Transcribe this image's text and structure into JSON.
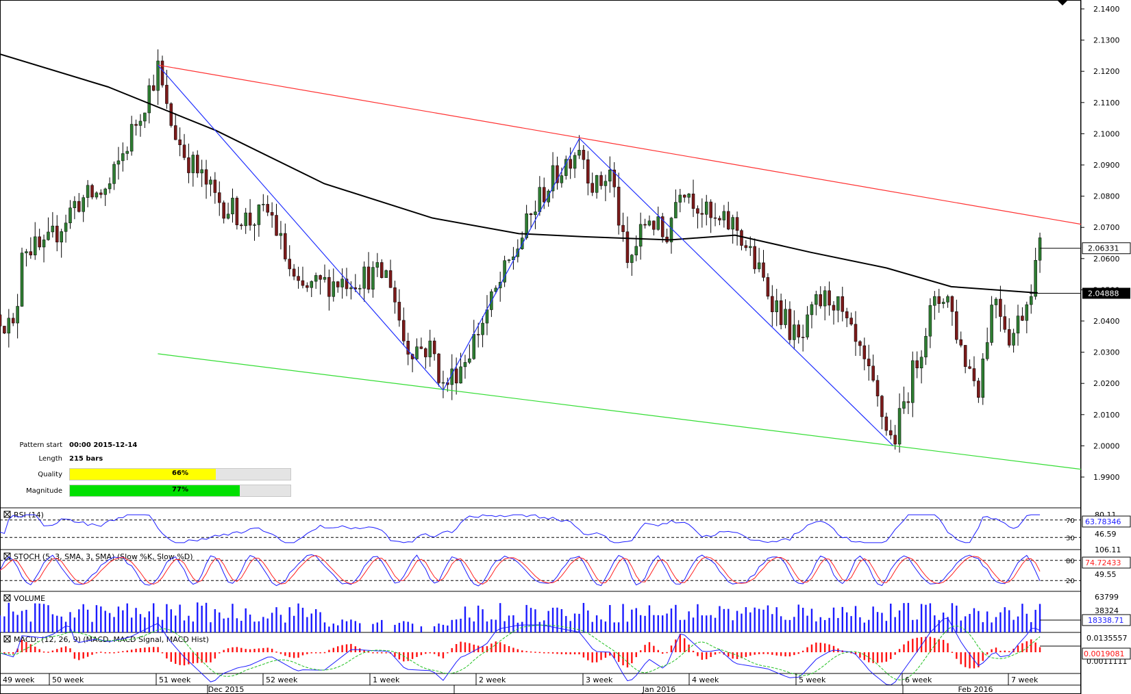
{
  "price_axis": {
    "ticks": [
      "2.1400",
      "2.1300",
      "2.1200",
      "2.1100",
      "2.1000",
      "2.0900",
      "2.0800",
      "2.0700",
      "2.0600",
      "2.0500",
      "2.0400",
      "2.0300",
      "2.0200",
      "2.0100",
      "2.0000",
      "1.9900"
    ],
    "last_price_label": "2.06331",
    "ma_label": "2.04888"
  },
  "time_axis": {
    "week_labels": [
      "49 week",
      "50 week",
      "51 week",
      "52 week",
      "1 week",
      "2 week",
      "3 week",
      "4 week",
      "5 week",
      "6 week",
      "7 week"
    ],
    "month_labels": [
      "Dec 2015",
      "Jan 2016",
      "Feb 2016"
    ]
  },
  "pattern_info": {
    "start_label": "Pattern start",
    "start_value": "00:00 2015-12-14",
    "length_label": "Length",
    "length_value": "215 bars",
    "quality_label": "Quality",
    "quality_text": "66%",
    "quality_value": 0.66,
    "magnitude_label": "Magnitude",
    "magnitude_text": "77%",
    "magnitude_value": 0.77
  },
  "indicators": {
    "rsi": {
      "title": "RSI (14)",
      "levels": [
        "70",
        "30"
      ],
      "scale": [
        "80.11",
        "46.59"
      ],
      "value": "63.78346"
    },
    "stoch": {
      "title": "STOCH (5, 3, SMA, 3, SMA) (Slow %K, Slow %D)",
      "levels": [
        "80",
        "20"
      ],
      "scale": [
        "106.11",
        "49.55"
      ],
      "value": "74.72433"
    },
    "volume": {
      "title": "VOLUME",
      "scale": [
        "63799",
        "38324"
      ],
      "value": "18338.71"
    },
    "macd": {
      "title": "MACD: (12, 26, 9) (MACD, MACD Signal, MACD Hist)",
      "scale": [
        "0.0135557",
        "0.0011111"
      ],
      "value": "0.0019081"
    }
  },
  "colors": {
    "bull": "#2e7d32",
    "bear": "#7b1a1a",
    "ma": "#000000",
    "resistance": "#ff3030",
    "support": "#33dd33",
    "zigzag": "#2030ff",
    "quality": "#ffff00",
    "magnitude": "#00e000"
  },
  "chart_data": {
    "type": "candlestick",
    "title": "",
    "ylim": [
      1.99,
      2.14
    ],
    "zigzag_points": [
      [
        0.146,
        2.122
      ],
      [
        0.41,
        2.0178
      ],
      [
        0.536,
        2.0985
      ],
      [
        0.826,
        2.0001
      ]
    ],
    "resistance_line": [
      [
        0.146,
        2.122
      ],
      [
        1.0,
        2.071
      ]
    ],
    "support_line": [
      [
        0.146,
        2.0295
      ],
      [
        1.0,
        1.9925
      ]
    ],
    "ma_points": [
      [
        0.0,
        2.1255
      ],
      [
        0.1,
        2.115
      ],
      [
        0.2,
        2.101
      ],
      [
        0.3,
        2.084
      ],
      [
        0.4,
        2.073
      ],
      [
        0.48,
        2.068
      ],
      [
        0.54,
        2.067
      ],
      [
        0.62,
        2.066
      ],
      [
        0.68,
        2.0675
      ],
      [
        0.75,
        2.062
      ],
      [
        0.82,
        2.057
      ],
      [
        0.88,
        2.051
      ],
      [
        0.96,
        2.049
      ]
    ],
    "price_anchors": [
      [
        0.0,
        2.042
      ],
      [
        0.014,
        2.036
      ],
      [
        0.02,
        2.065
      ],
      [
        0.04,
        2.062
      ],
      [
        0.07,
        2.078
      ],
      [
        0.1,
        2.082
      ],
      [
        0.126,
        2.104
      ],
      [
        0.146,
        2.121
      ],
      [
        0.155,
        2.106
      ],
      [
        0.17,
        2.094
      ],
      [
        0.2,
        2.079
      ],
      [
        0.23,
        2.072
      ],
      [
        0.25,
        2.075
      ],
      [
        0.275,
        2.049
      ],
      [
        0.3,
        2.052
      ],
      [
        0.33,
        2.054
      ],
      [
        0.36,
        2.055
      ],
      [
        0.375,
        2.032
      ],
      [
        0.4,
        2.031
      ],
      [
        0.41,
        2.0185
      ],
      [
        0.43,
        2.028
      ],
      [
        0.46,
        2.05
      ],
      [
        0.48,
        2.065
      ],
      [
        0.5,
        2.08
      ],
      [
        0.536,
        2.097
      ],
      [
        0.55,
        2.082
      ],
      [
        0.565,
        2.088
      ],
      [
        0.58,
        2.057
      ],
      [
        0.6,
        2.074
      ],
      [
        0.615,
        2.066
      ],
      [
        0.63,
        2.085
      ],
      [
        0.66,
        2.071
      ],
      [
        0.68,
        2.071
      ],
      [
        0.71,
        2.05
      ],
      [
        0.74,
        2.032
      ],
      [
        0.755,
        2.045
      ],
      [
        0.77,
        2.048
      ],
      [
        0.8,
        2.025
      ],
      [
        0.826,
        2.0005
      ],
      [
        0.84,
        2.018
      ],
      [
        0.86,
        2.042
      ],
      [
        0.875,
        2.05
      ],
      [
        0.89,
        2.03
      ],
      [
        0.905,
        2.019
      ],
      [
        0.92,
        2.05
      ],
      [
        0.935,
        2.034
      ],
      [
        0.95,
        2.047
      ],
      [
        0.962,
        2.0633
      ]
    ],
    "last_price": 2.06331,
    "ma_value": 2.04888,
    "series": [
      {
        "name": "RSI (14)",
        "last": 63.78346
      },
      {
        "name": "Slow %K",
        "last": 74.72433
      },
      {
        "name": "VOLUME",
        "last": 18338.71
      },
      {
        "name": "MACD",
        "last": 0.0019081
      }
    ]
  }
}
